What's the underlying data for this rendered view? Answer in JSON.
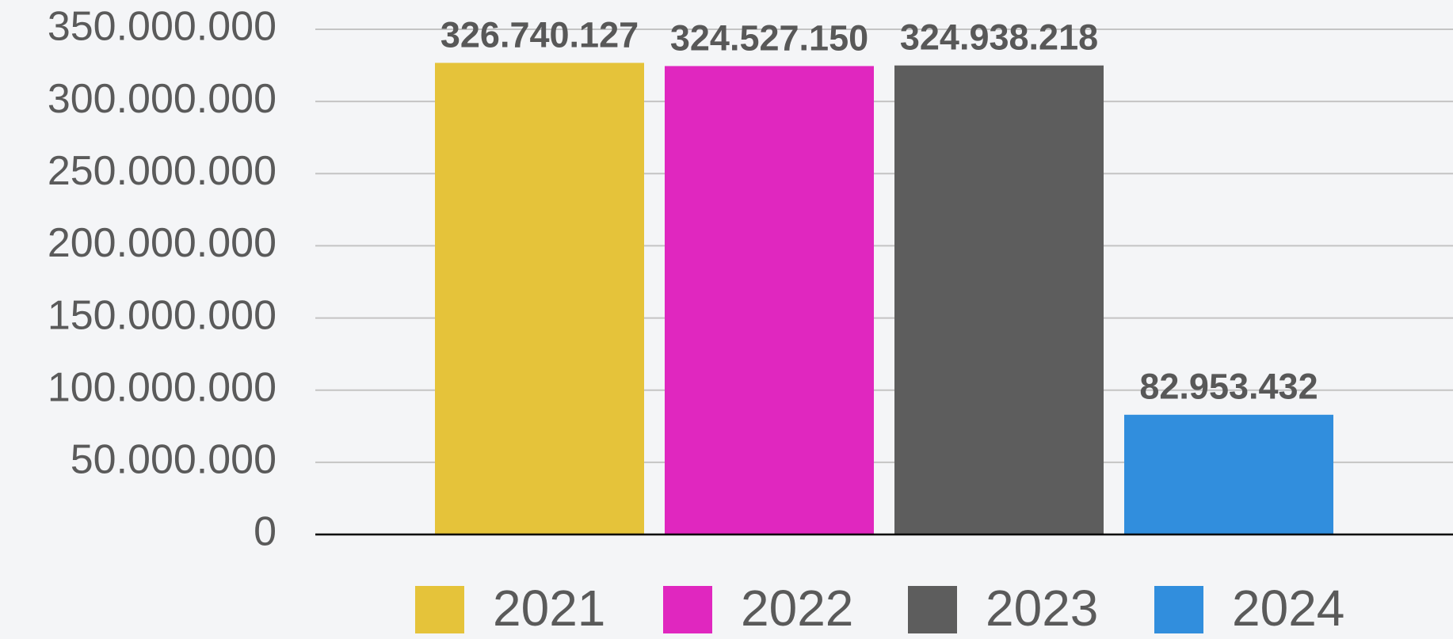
{
  "chart_data": {
    "type": "bar",
    "categories": [
      null
    ],
    "series": [
      {
        "name": "2021",
        "color": "#e5c33a",
        "values": [
          326740127
        ],
        "value_labels": [
          "326.740.127"
        ]
      },
      {
        "name": "2022",
        "color": "#e027bf",
        "values": [
          324527150
        ],
        "value_labels": [
          "324.527.150"
        ]
      },
      {
        "name": "2023",
        "color": "#5d5d5d",
        "values": [
          324938218
        ],
        "value_labels": [
          "324.938.218"
        ]
      },
      {
        "name": "2024",
        "color": "#318edd",
        "values": [
          82953432
        ],
        "value_labels": [
          "82.953.432"
        ]
      }
    ],
    "ylim": [
      0,
      350000000
    ],
    "yticks": [
      0,
      {
        "value": 50000000,
        "label": "50.000.000"
      },
      {
        "value": 100000000,
        "label": "100.000.000"
      },
      {
        "value": 150000000,
        "label": "150.000.000"
      },
      {
        "value": 200000000,
        "label": "200.000.000"
      },
      {
        "value": 250000000,
        "label": "250.000.000"
      },
      {
        "value": 300000000,
        "label": "300.000.000"
      },
      {
        "value": 350000000,
        "label": "350.000.000"
      }
    ],
    "grid": true,
    "legend": "bottom"
  }
}
